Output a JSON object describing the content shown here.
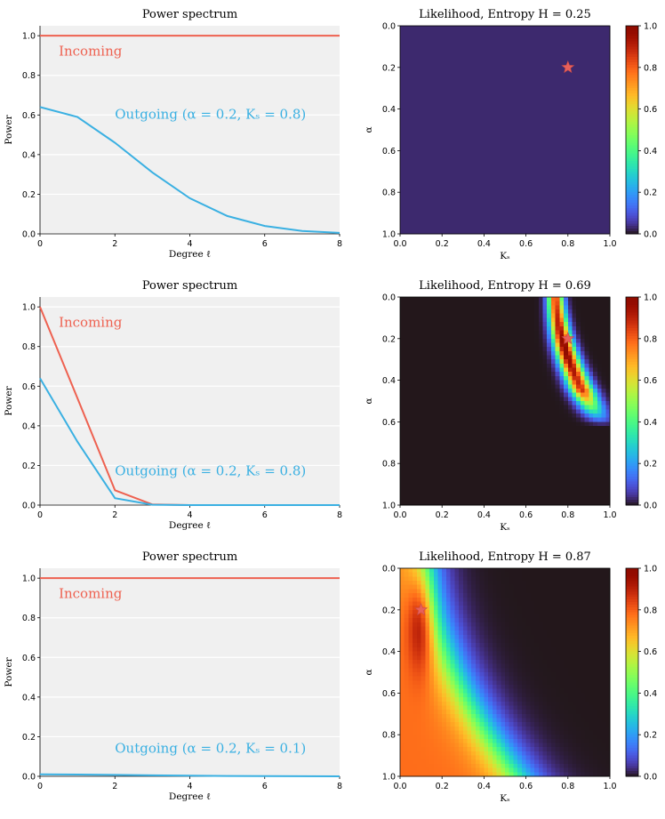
{
  "colors": {
    "incoming": "#ee6150",
    "outgoing": "#3ab0e2",
    "panel_bg": "#f0f0f0",
    "grid": "#ffffff",
    "star": "#e8605a"
  },
  "chart_data": [
    {
      "type": "line",
      "title": "Power spectrum",
      "xlabel": "Degree ℓ",
      "ylabel": "Power",
      "xlim": [
        0,
        8
      ],
      "ylim": [
        0,
        1.05
      ],
      "xticks": [
        "0",
        "2",
        "4",
        "6",
        "8"
      ],
      "yticks": [
        "0.0",
        "0.2",
        "0.4",
        "0.6",
        "0.8",
        "1.0"
      ],
      "grid": "horizontal",
      "series": [
        {
          "name": "Incoming",
          "color": "#ee6150",
          "x": [
            0,
            1,
            2,
            3,
            4,
            5,
            6,
            7,
            8
          ],
          "values": [
            1,
            1,
            1,
            1,
            1,
            1,
            1,
            1,
            1
          ]
        },
        {
          "name": "Outgoing",
          "color": "#3ab0e2",
          "x": [
            0,
            1,
            2,
            3,
            4,
            5,
            6,
            7,
            8
          ],
          "values": [
            0.64,
            0.59,
            0.46,
            0.31,
            0.18,
            0.09,
            0.04,
            0.015,
            0.005
          ]
        }
      ],
      "annotations": [
        {
          "text": "Incoming",
          "color": "#ee6150",
          "x": 0.5,
          "y": 0.9
        },
        {
          "text": "Outgoing (α = 0.2, Kₛ = 0.8)",
          "color": "#3ab0e2",
          "x": 2.0,
          "y": 0.58
        }
      ]
    },
    {
      "type": "heatmap",
      "title": "Likelihood, Entropy H = 0.25",
      "xlabel": "Kₛ",
      "ylabel": "α",
      "xlim": [
        0,
        1
      ],
      "ylim": [
        1,
        0
      ],
      "xticks": [
        "0.0",
        "0.2",
        "0.4",
        "0.6",
        "0.8",
        "1.0"
      ],
      "yticks": [
        "0.0",
        "0.2",
        "0.4",
        "0.6",
        "0.8",
        "1.0"
      ],
      "colorbar_ticks": [
        "0.0",
        "0.2",
        "0.4",
        "0.6",
        "0.8",
        "1.0"
      ],
      "colormap": "turbo",
      "true_parameters": {
        "Ks": 0.8,
        "alpha": 0.2
      },
      "pattern": "uniform_low"
    },
    {
      "type": "line",
      "title": "Power spectrum",
      "xlabel": "Degree ℓ",
      "ylabel": "Power",
      "xlim": [
        0,
        8
      ],
      "ylim": [
        0,
        1.05
      ],
      "xticks": [
        "0",
        "2",
        "4",
        "6",
        "8"
      ],
      "yticks": [
        "0.0",
        "0.2",
        "0.4",
        "0.6",
        "0.8",
        "1.0"
      ],
      "grid": "horizontal",
      "series": [
        {
          "name": "Incoming",
          "color": "#ee6150",
          "x": [
            0,
            1,
            2,
            3,
            4,
            5,
            6,
            7,
            8
          ],
          "values": [
            1.0,
            0.54,
            0.075,
            0.003,
            0,
            0,
            0,
            0,
            0
          ]
        },
        {
          "name": "Outgoing",
          "color": "#3ab0e2",
          "x": [
            0,
            1,
            2,
            3,
            4,
            5,
            6,
            7,
            8
          ],
          "values": [
            0.64,
            0.32,
            0.035,
            0.002,
            0,
            0,
            0,
            0,
            0
          ]
        }
      ],
      "annotations": [
        {
          "text": "Incoming",
          "color": "#ee6150",
          "x": 0.5,
          "y": 0.9
        },
        {
          "text": "Outgoing (α = 0.2, Kₛ = 0.8)",
          "color": "#3ab0e2",
          "x": 2.0,
          "y": 0.15
        }
      ]
    },
    {
      "type": "heatmap",
      "title": "Likelihood, Entropy H = 0.69",
      "xlabel": "Kₛ",
      "ylabel": "α",
      "xlim": [
        0,
        1
      ],
      "ylim": [
        1,
        0
      ],
      "xticks": [
        "0.0",
        "0.2",
        "0.4",
        "0.6",
        "0.8",
        "1.0"
      ],
      "yticks": [
        "0.0",
        "0.2",
        "0.4",
        "0.6",
        "0.8",
        "1.0"
      ],
      "colorbar_ticks": [
        "0.0",
        "0.2",
        "0.4",
        "0.6",
        "0.8",
        "1.0"
      ],
      "colormap": "turbo",
      "true_parameters": {
        "Ks": 0.8,
        "alpha": 0.2
      },
      "pattern": "narrow_curved_band"
    },
    {
      "type": "line",
      "title": "Power spectrum",
      "xlabel": "Degree ℓ",
      "ylabel": "Power",
      "xlim": [
        0,
        8
      ],
      "ylim": [
        0,
        1.05
      ],
      "xticks": [
        "0",
        "2",
        "4",
        "6",
        "8"
      ],
      "yticks": [
        "0.0",
        "0.2",
        "0.4",
        "0.6",
        "0.8",
        "1.0"
      ],
      "grid": "horizontal",
      "series": [
        {
          "name": "Incoming",
          "color": "#ee6150",
          "x": [
            0,
            1,
            2,
            3,
            4,
            5,
            6,
            7,
            8
          ],
          "values": [
            1,
            1,
            1,
            1,
            1,
            1,
            1,
            1,
            1
          ]
        },
        {
          "name": "Outgoing",
          "color": "#3ab0e2",
          "x": [
            0,
            1,
            2,
            3,
            4,
            5,
            6,
            7,
            8
          ],
          "values": [
            0.01,
            0.009,
            0.007,
            0.005,
            0.003,
            0.002,
            0.001,
            0.0005,
            0.0002
          ]
        }
      ],
      "annotations": [
        {
          "text": "Incoming",
          "color": "#ee6150",
          "x": 0.5,
          "y": 0.9
        },
        {
          "text": "Outgoing (α = 0.2, Kₛ = 0.1)",
          "color": "#3ab0e2",
          "x": 2.0,
          "y": 0.12
        }
      ]
    },
    {
      "type": "heatmap",
      "title": "Likelihood, Entropy H = 0.87",
      "xlabel": "Kₛ",
      "ylabel": "α",
      "xlim": [
        0,
        1
      ],
      "ylim": [
        1,
        0
      ],
      "xticks": [
        "0.0",
        "0.2",
        "0.4",
        "0.6",
        "0.8",
        "1.0"
      ],
      "yticks": [
        "0.0",
        "0.2",
        "0.4",
        "0.6",
        "0.8",
        "1.0"
      ],
      "colorbar_ticks": [
        "0.0",
        "0.2",
        "0.4",
        "0.6",
        "0.8",
        "1.0"
      ],
      "colormap": "turbo",
      "true_parameters": {
        "Ks": 0.1,
        "alpha": 0.2
      },
      "pattern": "broad_region_left"
    }
  ]
}
